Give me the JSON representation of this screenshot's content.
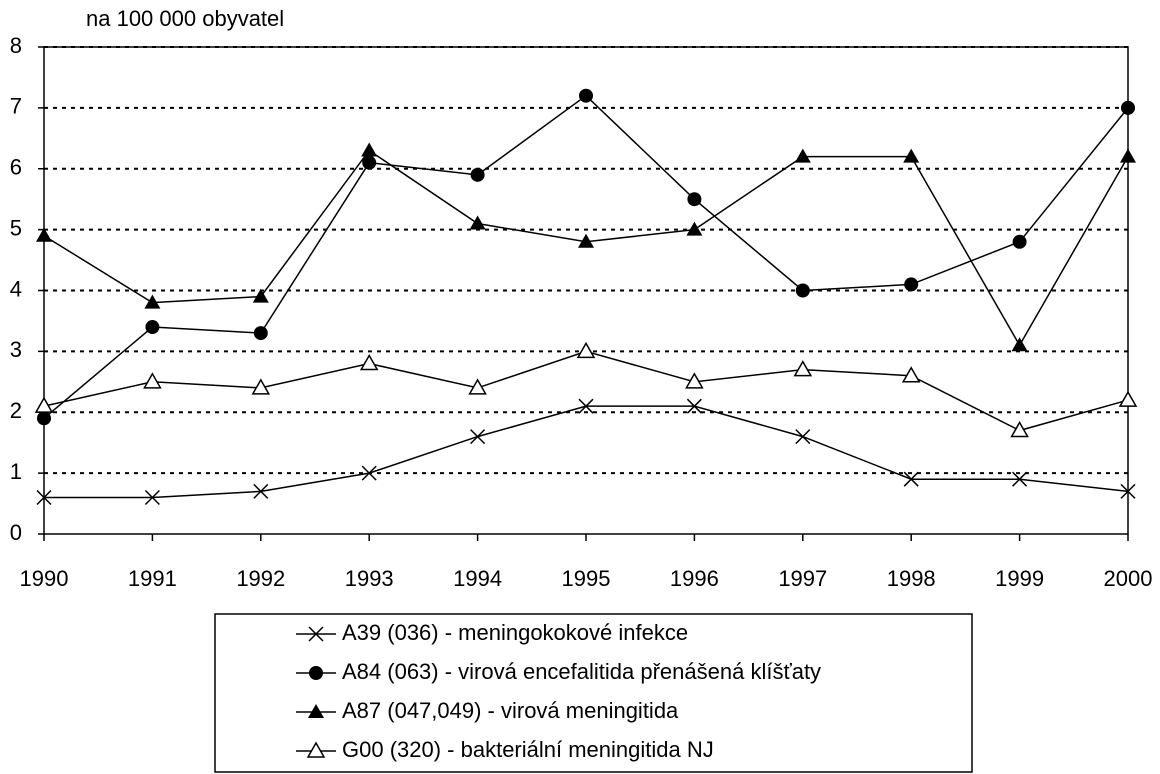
{
  "chart_data": {
    "type": "line",
    "ylabel": "na 100 000 obyvatel",
    "x": [
      1990,
      1991,
      1992,
      1993,
      1994,
      1995,
      1996,
      1997,
      1998,
      1999,
      2000
    ],
    "xlim": [
      1990,
      2000
    ],
    "xticks": [
      1990,
      1991,
      1992,
      1993,
      1994,
      1995,
      1996,
      1997,
      1998,
      1999,
      2000
    ],
    "ylim": [
      0,
      8
    ],
    "yticks": [
      0,
      1,
      2,
      3,
      4,
      5,
      6,
      7,
      8
    ],
    "grid": true,
    "legend": "bottom",
    "series": [
      {
        "name": "A39 (036) - meningokokové infekce",
        "color": "#000000",
        "marker": "x",
        "values": [
          0.6,
          0.6,
          0.7,
          1.0,
          1.6,
          2.1,
          2.1,
          1.6,
          0.9,
          0.9,
          0.7
        ]
      },
      {
        "name": "A84 (063) - virová encefalitida přenášená klíšťaty",
        "color": "#000000",
        "marker": "circle",
        "values": [
          1.9,
          3.4,
          3.3,
          6.1,
          5.9,
          7.2,
          5.5,
          4.0,
          4.1,
          4.8,
          7.0
        ]
      },
      {
        "name": "A87 (047,049) - virová meningitida",
        "color": "#000000",
        "marker": "triangle",
        "values": [
          4.9,
          3.8,
          3.9,
          6.3,
          5.1,
          4.8,
          5.0,
          6.2,
          6.2,
          3.1,
          6.2
        ]
      },
      {
        "name": "G00 (320) - bakteriální meningitida NJ",
        "color": "#000000",
        "marker": "triangle-open",
        "values": [
          2.1,
          2.5,
          2.4,
          2.8,
          2.4,
          3.0,
          2.5,
          2.7,
          2.6,
          1.7,
          2.2
        ]
      }
    ]
  }
}
